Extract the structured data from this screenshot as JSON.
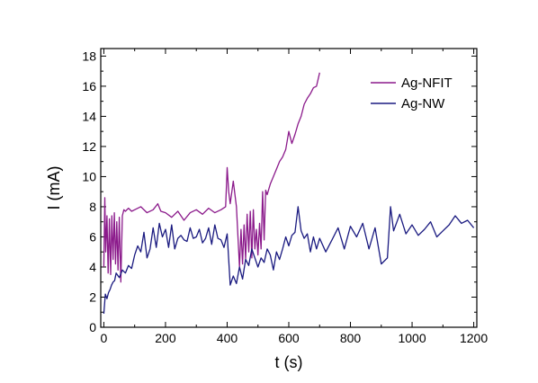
{
  "chart_data": {
    "type": "line",
    "title": "",
    "xlabel": "t (s)",
    "ylabel": "I (mA)",
    "xlim": [
      -10,
      1210
    ],
    "ylim": [
      0,
      18.5
    ],
    "xticks": [
      0,
      200,
      400,
      600,
      800,
      1000,
      1200
    ],
    "yticks": [
      0,
      2,
      4,
      6,
      8,
      10,
      12,
      14,
      16,
      18
    ],
    "xtick_labels": [
      "0",
      "200",
      "400",
      "600",
      "800",
      "1000",
      "1200"
    ],
    "ytick_labels": [
      "0",
      "2",
      "4",
      "6",
      "8",
      "10",
      "12",
      "14",
      "16",
      "18"
    ],
    "grid": false,
    "legend_position": "top-right",
    "series": [
      {
        "name": "Ag-NFIT",
        "color": "#8B1A8B",
        "x": [
          0,
          3,
          6,
          10,
          14,
          18,
          22,
          26,
          30,
          34,
          38,
          42,
          46,
          50,
          55,
          60,
          65,
          70,
          80,
          90,
          100,
          120,
          140,
          160,
          175,
          185,
          200,
          220,
          240,
          260,
          280,
          300,
          320,
          340,
          360,
          380,
          395,
          400,
          405,
          410,
          420,
          430,
          440,
          445,
          450,
          455,
          460,
          465,
          470,
          475,
          480,
          485,
          490,
          495,
          500,
          505,
          510,
          515,
          520,
          525,
          530,
          540,
          550,
          560,
          570,
          580,
          590,
          600,
          610,
          620,
          630,
          640,
          650,
          660,
          670,
          680,
          690,
          700
        ],
        "y": [
          4.0,
          8.6,
          5.0,
          7.4,
          3.6,
          7.2,
          3.5,
          7.4,
          4.5,
          7.6,
          4.2,
          7.0,
          3.8,
          7.3,
          3.0,
          7.4,
          7.8,
          7.7,
          7.9,
          7.7,
          7.8,
          8.0,
          7.6,
          7.8,
          8.2,
          7.7,
          7.6,
          7.3,
          7.7,
          7.1,
          7.6,
          7.8,
          7.5,
          7.9,
          7.6,
          7.8,
          8.0,
          10.6,
          9.0,
          8.2,
          9.7,
          8.0,
          4.0,
          6.5,
          4.2,
          6.8,
          4.5,
          7.5,
          5.0,
          7.7,
          4.6,
          7.8,
          5.2,
          6.5,
          4.8,
          6.9,
          5.2,
          9.0,
          5.8,
          9.1,
          8.8,
          9.5,
          10.0,
          10.5,
          11.0,
          11.3,
          11.8,
          13.0,
          12.2,
          12.8,
          13.5,
          14.0,
          14.8,
          15.2,
          15.5,
          15.9,
          16.0,
          16.9
        ]
      },
      {
        "name": "Ag-NW",
        "color": "#1A1A80",
        "x": [
          0,
          5,
          10,
          15,
          20,
          25,
          30,
          35,
          40,
          50,
          60,
          70,
          80,
          90,
          100,
          110,
          120,
          130,
          140,
          150,
          160,
          170,
          180,
          190,
          200,
          210,
          220,
          230,
          240,
          250,
          260,
          270,
          280,
          290,
          300,
          310,
          320,
          330,
          340,
          350,
          360,
          370,
          380,
          390,
          400,
          410,
          420,
          430,
          440,
          450,
          460,
          470,
          480,
          490,
          500,
          510,
          520,
          530,
          540,
          550,
          560,
          570,
          580,
          590,
          600,
          610,
          620,
          630,
          640,
          650,
          660,
          670,
          680,
          690,
          700,
          720,
          740,
          760,
          780,
          800,
          820,
          840,
          860,
          880,
          900,
          920,
          930,
          940,
          960,
          980,
          1000,
          1020,
          1040,
          1060,
          1080,
          1100,
          1120,
          1140,
          1160,
          1180,
          1200
        ],
        "y": [
          0.9,
          2.2,
          1.9,
          2.3,
          2.5,
          2.8,
          3.0,
          3.1,
          3.6,
          3.3,
          3.8,
          3.6,
          4.1,
          3.9,
          4.8,
          5.4,
          5.0,
          6.3,
          4.6,
          5.2,
          6.6,
          5.3,
          6.9,
          6.0,
          6.5,
          5.3,
          6.8,
          5.2,
          5.9,
          6.1,
          5.8,
          5.7,
          6.6,
          5.9,
          6.0,
          6.5,
          5.6,
          5.9,
          6.6,
          5.5,
          6.8,
          5.9,
          5.8,
          5.3,
          6.2,
          2.8,
          3.4,
          2.9,
          4.0,
          3.2,
          4.5,
          4.1,
          5.2,
          4.6,
          4.0,
          4.6,
          4.3,
          5.2,
          4.8,
          3.8,
          5.0,
          4.5,
          5.2,
          6.0,
          5.4,
          6.1,
          6.3,
          8.0,
          6.4,
          5.9,
          6.2,
          5.0,
          6.0,
          5.2,
          5.9,
          5.0,
          5.8,
          6.6,
          5.2,
          6.7,
          6.0,
          6.9,
          5.2,
          6.6,
          4.2,
          4.6,
          8.0,
          6.4,
          7.5,
          6.2,
          6.8,
          6.1,
          6.5,
          7.0,
          6.0,
          6.4,
          6.8,
          7.4,
          6.9,
          7.1,
          6.6
        ]
      }
    ]
  }
}
